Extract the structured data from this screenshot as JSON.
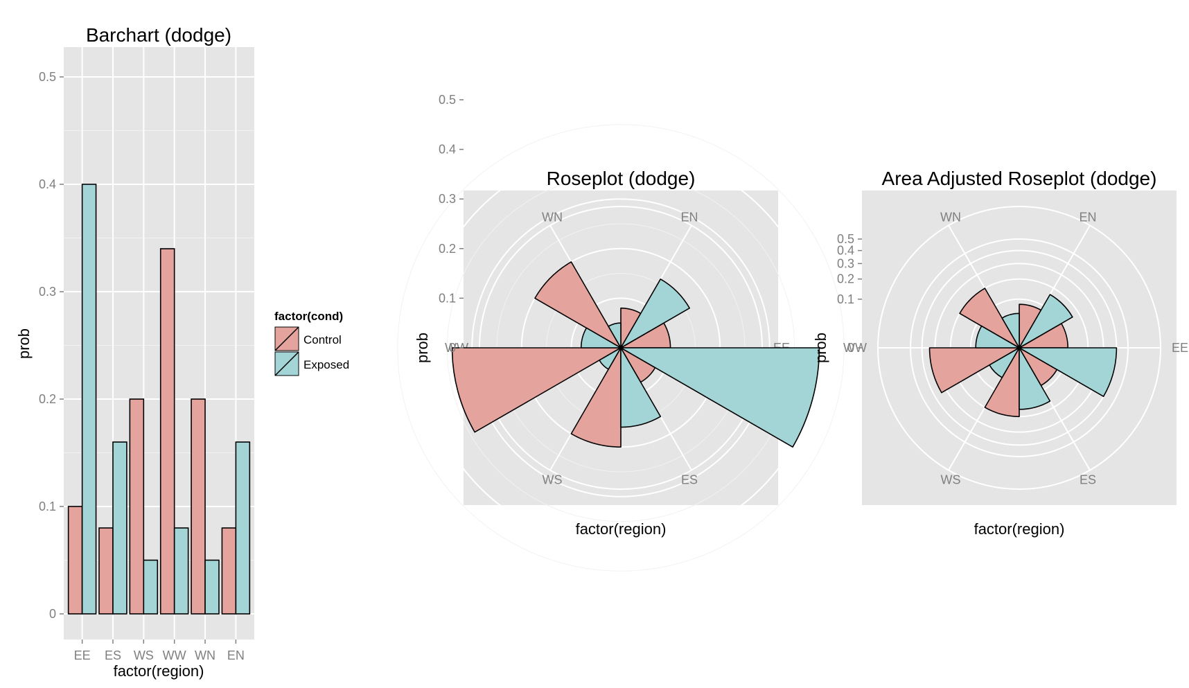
{
  "colors": {
    "control": "#e5a39e",
    "exposed": "#a3d5d7",
    "panel": "#e5e5e5",
    "grid": "#ffffff",
    "tick": "#7f7f7f"
  },
  "legend": {
    "title": "factor(cond)",
    "entries": [
      "Control",
      "Exposed"
    ]
  },
  "chart_data": [
    {
      "type": "bar",
      "title": "Barchart (dodge)",
      "xlabel": "factor(region)",
      "ylabel": "prob",
      "categories": [
        "EE",
        "ES",
        "WS",
        "WW",
        "WN",
        "EN"
      ],
      "series": [
        {
          "name": "Control",
          "values": [
            0.1,
            0.08,
            0.2,
            0.34,
            0.2,
            0.08
          ]
        },
        {
          "name": "Exposed",
          "values": [
            0.4,
            0.16,
            0.05,
            0.08,
            0.05,
            0.16
          ]
        }
      ],
      "yticks": [
        0,
        0.1,
        0.2,
        0.3,
        0.4,
        0.5
      ],
      "ytick_labels": [
        "0",
        "0.1",
        "0.2",
        "0.3",
        "0.4",
        "0.5"
      ],
      "ylim": [
        0,
        0.5
      ],
      "grid": true
    },
    {
      "type": "rose",
      "title": "Roseplot (dodge)",
      "xlabel": "factor(region)",
      "ylabel": "prob",
      "scale": "linear",
      "categories": [
        "EE",
        "ES",
        "WS",
        "WW",
        "WN",
        "EN"
      ],
      "series": [
        {
          "name": "Control",
          "values": [
            0.1,
            0.08,
            0.2,
            0.34,
            0.2,
            0.08
          ]
        },
        {
          "name": "Exposed",
          "values": [
            0.4,
            0.16,
            0.05,
            0.08,
            0.05,
            0.16
          ]
        }
      ],
      "rticks": [
        0,
        0.1,
        0.2,
        0.3,
        0.4,
        0.5
      ],
      "rtick_labels": [
        "0",
        "0.1",
        "0.2",
        "0.3",
        "0.4",
        "0.5"
      ],
      "rlim": [
        0,
        0.5
      ],
      "grid": true
    },
    {
      "type": "rose",
      "title": "Area Adjusted Roseplot (dodge)",
      "xlabel": "factor(region)",
      "ylabel": "prob",
      "scale": "sqrt",
      "categories": [
        "EE",
        "ES",
        "WS",
        "WW",
        "WN",
        "EN"
      ],
      "series": [
        {
          "name": "Control",
          "values": [
            0.1,
            0.08,
            0.2,
            0.34,
            0.2,
            0.08
          ]
        },
        {
          "name": "Exposed",
          "values": [
            0.4,
            0.16,
            0.05,
            0.08,
            0.05,
            0.16
          ]
        }
      ],
      "rticks": [
        0,
        0.1,
        0.2,
        0.3,
        0.4,
        0.5
      ],
      "rtick_labels": [
        "0",
        "0.1",
        "0.2",
        "0.3",
        "0.4",
        "0.5"
      ],
      "rlim": [
        0,
        0.5
      ],
      "grid": true
    }
  ]
}
